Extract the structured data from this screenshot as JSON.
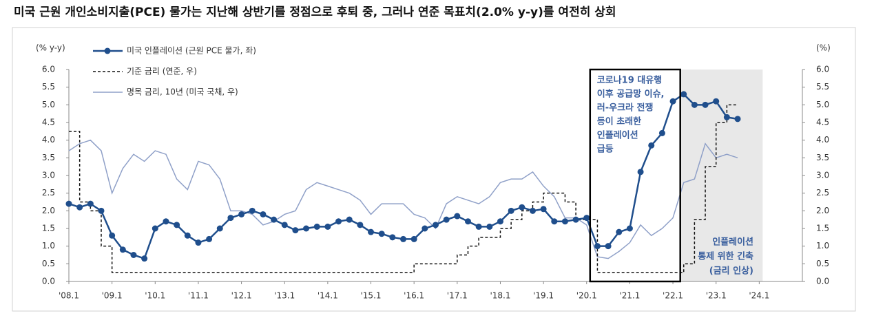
{
  "chart_data": {
    "type": "line",
    "title": "미국 근원 개인소비지출(PCE) 물가는 지난해 상반기를 정점으로 후퇴 중, 그러나 연준 목표치(2.0% y-y)를 여전히 상회",
    "y_label": "(% y-y)",
    "y2_label": "(%)",
    "x": [
      2008.0,
      2008.25,
      2008.5,
      2008.75,
      2009.0,
      2009.25,
      2009.5,
      2009.75,
      2010.0,
      2010.25,
      2010.5,
      2010.75,
      2011.0,
      2011.25,
      2011.5,
      2011.75,
      2012.0,
      2012.25,
      2012.5,
      2012.75,
      2013.0,
      2013.25,
      2013.5,
      2013.75,
      2014.0,
      2014.25,
      2014.5,
      2014.75,
      2015.0,
      2015.25,
      2015.5,
      2015.75,
      2016.0,
      2016.25,
      2016.5,
      2016.75,
      2017.0,
      2017.25,
      2017.5,
      2017.75,
      2018.0,
      2018.25,
      2018.5,
      2018.75,
      2019.0,
      2019.25,
      2019.5,
      2019.75,
      2020.0,
      2020.25,
      2020.5,
      2020.75,
      2021.0,
      2021.25,
      2021.5,
      2021.75,
      2022.0,
      2022.25,
      2022.5,
      2022.75,
      2023.0,
      2023.25,
      2023.5
    ],
    "series": [
      {
        "name": "미국 인플레이션 (근원 PCE 물가, 좌)",
        "color": "#1f4e8c",
        "axis": "y",
        "markers": true,
        "values": [
          2.2,
          2.1,
          2.2,
          2.0,
          1.3,
          0.9,
          0.75,
          0.65,
          1.5,
          1.7,
          1.6,
          1.3,
          1.1,
          1.2,
          1.5,
          1.8,
          1.9,
          2.0,
          1.9,
          1.75,
          1.6,
          1.45,
          1.5,
          1.55,
          1.55,
          1.7,
          1.75,
          1.6,
          1.4,
          1.35,
          1.25,
          1.2,
          1.2,
          1.5,
          1.6,
          1.75,
          1.85,
          1.7,
          1.55,
          1.55,
          1.7,
          2.0,
          2.1,
          2.0,
          2.05,
          1.7,
          1.7,
          1.75,
          1.8,
          1.0,
          1.0,
          1.4,
          1.5,
          3.1,
          3.85,
          4.2,
          5.1,
          5.3,
          5.0,
          5.0,
          5.1,
          4.65,
          4.6
        ]
      },
      {
        "name": "기준 금리 (연준, 우)",
        "color": "#111111",
        "axis": "y2",
        "dashed": true,
        "step": true,
        "values": [
          4.25,
          2.25,
          2.0,
          1.0,
          0.25,
          0.25,
          0.25,
          0.25,
          0.25,
          0.25,
          0.25,
          0.25,
          0.25,
          0.25,
          0.25,
          0.25,
          0.25,
          0.25,
          0.25,
          0.25,
          0.25,
          0.25,
          0.25,
          0.25,
          0.25,
          0.25,
          0.25,
          0.25,
          0.25,
          0.25,
          0.25,
          0.25,
          0.5,
          0.5,
          0.5,
          0.5,
          0.75,
          1.0,
          1.25,
          1.25,
          1.5,
          1.75,
          2.0,
          2.25,
          2.5,
          2.5,
          2.25,
          1.75,
          1.75,
          0.25,
          0.25,
          0.25,
          0.25,
          0.25,
          0.25,
          0.25,
          0.25,
          0.5,
          1.75,
          3.25,
          4.5,
          5.0,
          5.0
        ]
      },
      {
        "name": "명목 금리, 10년 (미국 국채, 우)",
        "color": "#8fa0c8",
        "axis": "y2",
        "values": [
          3.7,
          3.9,
          4.0,
          3.7,
          2.5,
          3.2,
          3.6,
          3.4,
          3.7,
          3.6,
          2.9,
          2.6,
          3.4,
          3.3,
          2.9,
          2.0,
          2.0,
          1.9,
          1.6,
          1.7,
          1.9,
          2.0,
          2.6,
          2.8,
          2.7,
          2.6,
          2.5,
          2.3,
          1.9,
          2.2,
          2.2,
          2.2,
          1.9,
          1.8,
          1.5,
          2.2,
          2.4,
          2.3,
          2.2,
          2.4,
          2.8,
          2.9,
          2.9,
          3.1,
          2.7,
          2.4,
          1.8,
          1.8,
          1.6,
          0.7,
          0.65,
          0.85,
          1.1,
          1.6,
          1.3,
          1.5,
          1.8,
          2.8,
          2.9,
          3.9,
          3.5,
          3.6,
          3.5
        ]
      }
    ],
    "xlim": [
      2008.0,
      2025.0
    ],
    "xticks": [
      {
        "value": 2008,
        "label": "'08.1"
      },
      {
        "value": 2009,
        "label": "'09.1"
      },
      {
        "value": 2010,
        "label": "'10.1"
      },
      {
        "value": 2011,
        "label": "'11.1"
      },
      {
        "value": 2012,
        "label": "'12.1"
      },
      {
        "value": 2013,
        "label": "'13.1"
      },
      {
        "value": 2014,
        "label": "'14.1"
      },
      {
        "value": 2015,
        "label": "'15.1"
      },
      {
        "value": 2016,
        "label": "'16.1"
      },
      {
        "value": 2017,
        "label": "'17.1"
      },
      {
        "value": 2018,
        "label": "'18.1"
      },
      {
        "value": 2019,
        "label": "'19.1"
      },
      {
        "value": 2020,
        "label": "'20.1"
      },
      {
        "value": 2021,
        "label": "'21.1"
      },
      {
        "value": 2022,
        "label": "'22.1"
      },
      {
        "value": 2023,
        "label": "'23.1"
      },
      {
        "value": 2024,
        "label": "'24.1"
      }
    ],
    "ylim": [
      0,
      6
    ],
    "yticks": [
      {
        "value": 0,
        "label": "0.0"
      },
      {
        "value": 0.5,
        "label": "0.5"
      },
      {
        "value": 1,
        "label": "1.0"
      },
      {
        "value": 1.5,
        "label": "1.5"
      },
      {
        "value": 2,
        "label": "2.0"
      },
      {
        "value": 2.5,
        "label": "2.5"
      },
      {
        "value": 3,
        "label": "3.0"
      },
      {
        "value": 3.5,
        "label": "3.5"
      },
      {
        "value": 4,
        "label": "4.0"
      },
      {
        "value": 4.5,
        "label": "4.5"
      },
      {
        "value": 5,
        "label": "5.0"
      },
      {
        "value": 5.5,
        "label": "5.5"
      },
      {
        "value": 6,
        "label": "6.0"
      }
    ],
    "y2lim": [
      0,
      6
    ],
    "y2ticks": [
      {
        "value": 0,
        "label": "0.0"
      },
      {
        "value": 0.5,
        "label": "0.5"
      },
      {
        "value": 1,
        "label": "1.0"
      },
      {
        "value": 1.5,
        "label": "1.5"
      },
      {
        "value": 2,
        "label": "2.0"
      },
      {
        "value": 2.5,
        "label": "2.5"
      },
      {
        "value": 3,
        "label": "3.0"
      },
      {
        "value": 3.5,
        "label": "3.5"
      },
      {
        "value": 4,
        "label": "4.0"
      },
      {
        "value": 4.5,
        "label": "4.5"
      },
      {
        "value": 5,
        "label": "5.0"
      },
      {
        "value": 5.5,
        "label": "5.5"
      },
      {
        "value": 6,
        "label": "6.0"
      }
    ],
    "shaded_xrange": [
      2022.17,
      2024.08
    ],
    "boxed_xrange": [
      2020.08,
      2022.17
    ],
    "annotations": [
      {
        "lines": [
          "코로나19 대유행",
          "이후 공급망 이슈,",
          "러-우크라 전쟁",
          "등이 초래한",
          "인플레이션",
          "급등"
        ]
      },
      {
        "lines": [
          "인플레이션",
          "통제 위한 긴축",
          "(금리 인상)"
        ]
      }
    ],
    "legend": "upper left"
  }
}
